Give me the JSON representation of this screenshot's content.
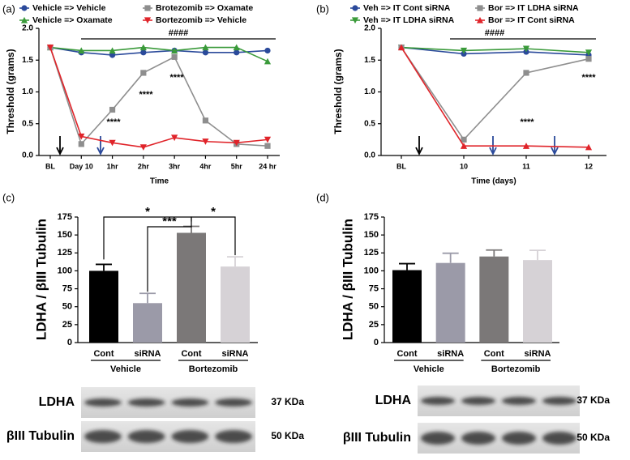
{
  "chart_data": [
    {
      "type": "line",
      "panel": "(a)",
      "x_label": "Time",
      "y_label": "Threshold (grams)",
      "categories": [
        "BL",
        "Day 10",
        "1hr",
        "2hr",
        "3hr",
        "4hr",
        "5hr",
        "24 hr"
      ],
      "ylim": [
        0,
        2
      ],
      "yticks": [
        {
          "value": 0,
          "label": "0.0"
        },
        0.5,
        {
          "value": 1,
          "label": "1.0"
        },
        1.5,
        {
          "value": 2,
          "label": "2.0"
        }
      ],
      "series": [
        {
          "name": "Vehicle => Vehicle",
          "color": "#2b4a9b",
          "marker": "circle",
          "values": [
            1.7,
            1.62,
            1.58,
            1.62,
            1.65,
            1.62,
            1.62,
            1.65
          ]
        },
        {
          "name": "Vehicle => Oxamate",
          "color": "#3a9a3a",
          "marker": "triangle",
          "values": [
            1.7,
            1.65,
            1.65,
            1.7,
            1.65,
            1.7,
            1.7,
            1.48
          ]
        },
        {
          "name": "Brotezomib => Oxamate",
          "color": "#8e8e8e",
          "marker": "square",
          "values": [
            1.7,
            0.18,
            0.72,
            1.3,
            1.55,
            0.55,
            0.18,
            0.15
          ]
        },
        {
          "name": "Bortezomib => Vehicle",
          "color": "#e0242a",
          "marker": "down-triangle",
          "values": [
            1.7,
            0.3,
            0.2,
            0.13,
            0.28,
            0.22,
            0.2,
            0.25
          ]
        }
      ],
      "annotations": [
        "####",
        "****",
        "****",
        "****"
      ]
    },
    {
      "type": "line",
      "panel": "(b)",
      "x_label": "Time (days)",
      "y_label": "Threshold (grams)",
      "categories": [
        "BL",
        "10",
        "11",
        "12"
      ],
      "ylim": [
        0,
        2
      ],
      "yticks": [
        {
          "value": 0,
          "label": "0.0"
        },
        0.5,
        {
          "value": 1,
          "label": "1.0"
        },
        1.5,
        {
          "value": 2,
          "label": "2.0"
        }
      ],
      "series": [
        {
          "name": "Veh => IT Cont siRNA",
          "color": "#2b4a9b",
          "marker": "circle",
          "values": [
            1.7,
            1.6,
            1.63,
            1.58
          ]
        },
        {
          "name": "Veh => IT LDHA siRNA",
          "color": "#3a9a3a",
          "marker": "down-triangle",
          "values": [
            1.7,
            1.65,
            1.68,
            1.62
          ]
        },
        {
          "name": "Bor => IT LDHA siRNA",
          "color": "#8e8e8e",
          "marker": "square",
          "values": [
            1.7,
            0.25,
            1.3,
            1.52
          ]
        },
        {
          "name": "Bor => IT Cont siRNA",
          "color": "#e0242a",
          "marker": "triangle",
          "values": [
            1.7,
            0.15,
            0.15,
            0.13
          ]
        }
      ],
      "annotations": [
        "####",
        "****",
        "****"
      ]
    },
    {
      "type": "bar",
      "panel": "(c)",
      "y_label": "LDHA / βIII Tubulin",
      "categories": [
        "Cont",
        "siRNA",
        "Cont",
        "siRNA"
      ],
      "groups": [
        "Vehicle",
        "Bortezomib"
      ],
      "values": [
        100,
        55,
        153,
        106
      ],
      "colors": [
        "#000000",
        "#9b9aa8",
        "#7b7878",
        "#d6d2d6"
      ],
      "ylim": [
        0,
        175
      ],
      "yticks": [
        0,
        25,
        50,
        75,
        100,
        125,
        150,
        175
      ],
      "annotations": [
        "*",
        "***",
        "*"
      ],
      "blots": [
        {
          "protein": "LDHA",
          "size": "37 KDa"
        },
        {
          "protein": "βIII Tubulin",
          "size": "50 KDa"
        }
      ]
    },
    {
      "type": "bar",
      "panel": "(d)",
      "y_label": "LDHA / βIII Tubulin",
      "categories": [
        "Cont",
        "siRNA",
        "Cont",
        "siRNA"
      ],
      "groups": [
        "Vehicle",
        "Bortezomib"
      ],
      "values": [
        101,
        111,
        120,
        115
      ],
      "colors": [
        "#000000",
        "#9b9aa8",
        "#7b7878",
        "#d6d2d6"
      ],
      "ylim": [
        0,
        175
      ],
      "yticks": [
        0,
        25,
        50,
        75,
        100,
        125,
        150,
        175
      ],
      "blots": [
        {
          "protein": "LDHA",
          "size": "37 KDa"
        },
        {
          "protein": "βIII Tubulin",
          "size": "50 KDa"
        }
      ]
    }
  ]
}
